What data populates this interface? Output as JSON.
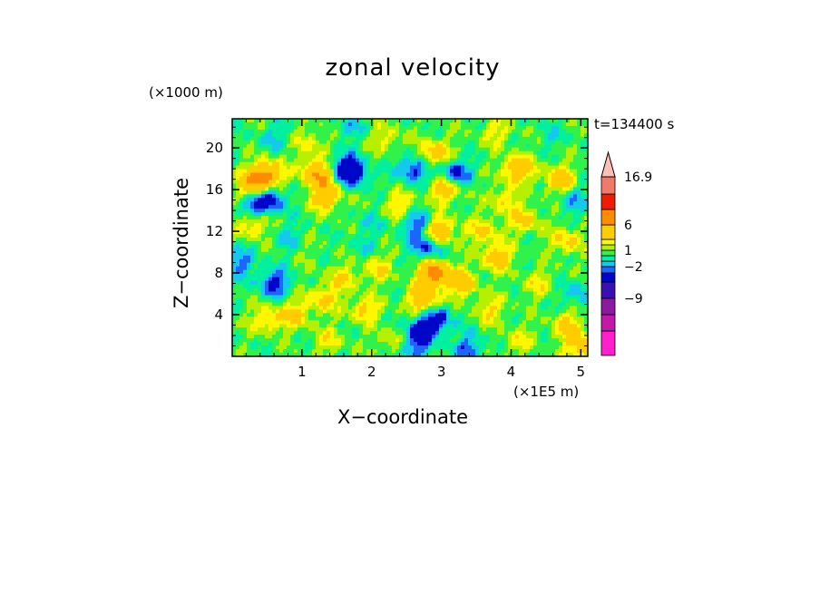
{
  "chart_data": {
    "type": "heatmap",
    "title": "zonal velocity",
    "xlabel": "X−coordinate",
    "ylabel": "Z−coordinate",
    "x_unit_label": "(×1E5 m)",
    "y_unit_label": "(×1000 m)",
    "time_label": "t=134400 s",
    "xlim": [
      0,
      5.1
    ],
    "ylim": [
      0,
      22.8
    ],
    "x_ticks": [
      "1",
      "2",
      "3",
      "4",
      "5"
    ],
    "x_tick_values": [
      1,
      2,
      3,
      4,
      5
    ],
    "y_ticks": [
      "4",
      "8",
      "12",
      "16",
      "20"
    ],
    "y_tick_values": [
      4,
      8,
      12,
      16,
      20
    ],
    "colorbar": {
      "levels": [
        -15,
        -12,
        -9,
        -6,
        -3,
        -2,
        -1,
        0,
        1,
        2,
        3,
        6,
        9,
        12,
        16.9
      ],
      "colors": [
        "#ff1fcc",
        "#c21aa8",
        "#8c1a9e",
        "#3a10b0",
        "#0006c8",
        "#1e64ff",
        "#16c8ee",
        "#00f0a0",
        "#31f24a",
        "#b6f000",
        "#fff700",
        "#ffcc00",
        "#ff8c00",
        "#ee1d00",
        "#f07a6a",
        "#ffbfb5"
      ],
      "tick_labels": [
        "16.9",
        "6",
        "1",
        "−2",
        "−9"
      ],
      "tick_values": [
        16.9,
        6,
        1,
        -2,
        -9
      ],
      "extend": "max"
    },
    "grid": false,
    "features": [
      {
        "x": 0.5,
        "z": 17.5,
        "v": 6
      },
      {
        "x": 0.3,
        "z": 16.5,
        "v": 5
      },
      {
        "x": 0.55,
        "z": 15.0,
        "v": -4
      },
      {
        "x": 0.3,
        "z": 14.5,
        "v": -3
      },
      {
        "x": 1.6,
        "z": 18.2,
        "v": -4
      },
      {
        "x": 1.75,
        "z": 17.5,
        "v": -4
      },
      {
        "x": 1.2,
        "z": 17.8,
        "v": 4
      },
      {
        "x": 1.35,
        "z": 15.2,
        "v": 4
      },
      {
        "x": 1.3,
        "z": 17.0,
        "v": 3
      },
      {
        "x": 2.6,
        "z": 18.0,
        "v": -4
      },
      {
        "x": 3.2,
        "z": 17.6,
        "v": -4
      },
      {
        "x": 2.9,
        "z": 19.5,
        "v": 4
      },
      {
        "x": 3.05,
        "z": 16.0,
        "v": 4
      },
      {
        "x": 2.7,
        "z": 12.5,
        "v": -4
      },
      {
        "x": 2.8,
        "z": 10.5,
        "v": -4
      },
      {
        "x": 2.95,
        "z": 12.0,
        "v": 6
      },
      {
        "x": 2.9,
        "z": 8.0,
        "v": 7
      },
      {
        "x": 2.75,
        "z": 5.5,
        "v": 5
      },
      {
        "x": 2.7,
        "z": 2.5,
        "v": -4
      },
      {
        "x": 2.95,
        "z": 3.5,
        "v": -4
      },
      {
        "x": 2.6,
        "z": 0.8,
        "v": -3
      },
      {
        "x": 3.4,
        "z": 0.8,
        "v": -3
      },
      {
        "x": 3.3,
        "z": 7.0,
        "v": 4
      },
      {
        "x": 3.8,
        "z": 9.5,
        "v": 4
      },
      {
        "x": 3.6,
        "z": 12.0,
        "v": 3
      },
      {
        "x": 4.1,
        "z": 18.0,
        "v": 5
      },
      {
        "x": 4.7,
        "z": 17.0,
        "v": 4
      },
      {
        "x": 4.2,
        "z": 13.0,
        "v": 3
      },
      {
        "x": 4.8,
        "z": 11.0,
        "v": 3
      },
      {
        "x": 4.9,
        "z": 15.0,
        "v": -2
      },
      {
        "x": 4.95,
        "z": 6.0,
        "v": -2
      },
      {
        "x": 4.8,
        "z": 3.0,
        "v": 3
      },
      {
        "x": 5.0,
        "z": 1.0,
        "v": 4
      },
      {
        "x": 0.6,
        "z": 7.0,
        "v": -4
      },
      {
        "x": 0.1,
        "z": 9.0,
        "v": -3
      },
      {
        "x": 0.8,
        "z": 11.5,
        "v": -1.5
      },
      {
        "x": 0.3,
        "z": 12.5,
        "v": 3
      },
      {
        "x": 0.9,
        "z": 4.0,
        "v": 3
      },
      {
        "x": 0.5,
        "z": 3.5,
        "v": 3
      },
      {
        "x": 1.3,
        "z": 5.5,
        "v": 3
      },
      {
        "x": 1.9,
        "z": 4.5,
        "v": 3
      },
      {
        "x": 2.1,
        "z": 8.5,
        "v": 2.5
      },
      {
        "x": 1.6,
        "z": 7.5,
        "v": 2.5
      },
      {
        "x": 1.9,
        "z": 10.5,
        "v": -1
      },
      {
        "x": 2.0,
        "z": 13.0,
        "v": -1
      },
      {
        "x": 1.1,
        "z": 10.0,
        "v": 0.5
      },
      {
        "x": 3.7,
        "z": 4.5,
        "v": 2.5
      },
      {
        "x": 4.4,
        "z": 7.0,
        "v": 2
      },
      {
        "x": 2.4,
        "z": 14.5,
        "v": 2.5
      },
      {
        "x": 1.1,
        "z": 20.5,
        "v": 2
      },
      {
        "x": 2.2,
        "z": 21.0,
        "v": 2
      },
      {
        "x": 3.8,
        "z": 21.5,
        "v": 2
      },
      {
        "x": 0.6,
        "z": 21.0,
        "v": -1.5
      },
      {
        "x": 1.7,
        "z": 22.0,
        "v": -1.5
      },
      {
        "x": 4.6,
        "z": 21.2,
        "v": -1
      },
      {
        "x": 3.9,
        "z": 15.0,
        "v": 2.5
      },
      {
        "x": 2.3,
        "z": 1.5,
        "v": 2
      },
      {
        "x": 1.4,
        "z": 1.5,
        "v": 2
      },
      {
        "x": 4.1,
        "z": 1.5,
        "v": 2
      }
    ]
  }
}
